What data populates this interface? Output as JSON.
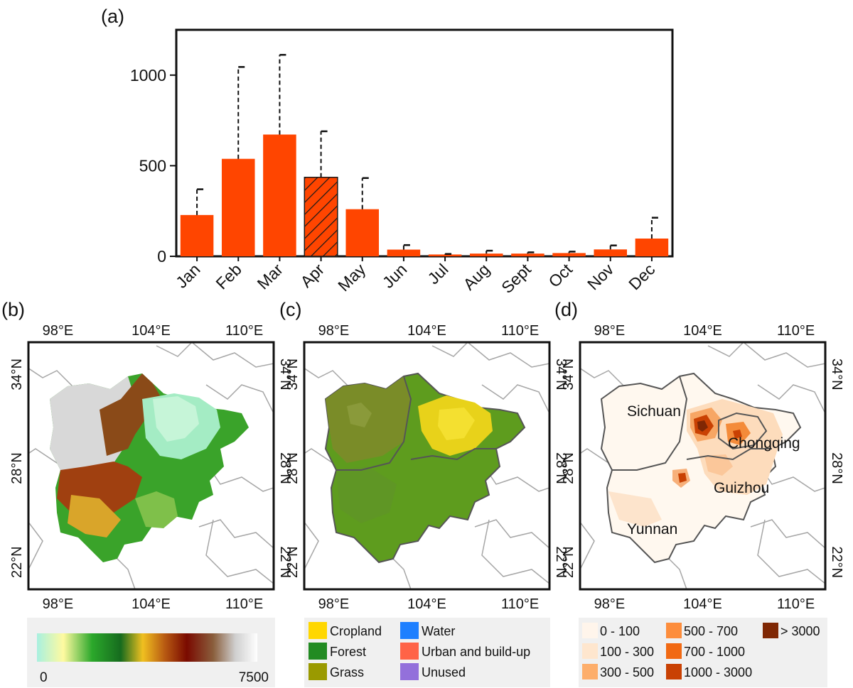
{
  "panel_labels": {
    "a": "(a)",
    "b": "(b)",
    "c": "(c)",
    "d": "(d)"
  },
  "chart_data": [
    {
      "type": "bar",
      "panel": "(a)",
      "categories": [
        "Jan",
        "Feb",
        "Mar",
        "Apr",
        "May",
        "Jun",
        "Jul",
        "Aug",
        "Sept",
        "Oct",
        "Nov",
        "Dec"
      ],
      "values": [
        228,
        538,
        672,
        436,
        260,
        37,
        10,
        15,
        15,
        18,
        38,
        98
      ],
      "error_upper": [
        370,
        1045,
        1112,
        690,
        432,
        62,
        13,
        31,
        22,
        26,
        60,
        213
      ],
      "hatched_categories": [
        "Apr"
      ],
      "bar_color": "#ff4500",
      "ylim": [
        0,
        1250
      ],
      "yticks": [
        0,
        500,
        1000
      ]
    }
  ],
  "maps": {
    "lon_ticks": [
      "98°E",
      "104°E",
      "110°E"
    ],
    "lat_ticks": [
      "34°N",
      "28°N",
      "22°N"
    ]
  },
  "elevation_legend": {
    "min_label": "0",
    "max_label": "7500"
  },
  "landuse_legend": [
    {
      "label": "Cropland",
      "color": "#ffd700"
    },
    {
      "label": "Water",
      "color": "#1e7fff"
    },
    {
      "label": "Forest",
      "color": "#228b22"
    },
    {
      "label": "Urban and build-up",
      "color": "#ff6347"
    },
    {
      "label": "Grass",
      "color": "#9a9a00"
    },
    {
      "label": "Unused",
      "color": "#9370db"
    }
  ],
  "density_legend": [
    {
      "label": "0 - 100",
      "color": "#fff5eb"
    },
    {
      "label": "500 - 700",
      "color": "#fd8d3c"
    },
    {
      "label": "> 3000",
      "color": "#7f2704"
    },
    {
      "label": "100 - 300",
      "color": "#fee6ce"
    },
    {
      "label": "700 - 1000",
      "color": "#f16913"
    },
    {
      "label": "300 - 500",
      "color": "#fdae6b"
    },
    {
      "label": "1000 - 3000",
      "color": "#c94103"
    }
  ],
  "provinces": {
    "sichuan": "Sichuan",
    "chongqing": "Chongqing",
    "guizhou": "Guizhou",
    "yunnan": "Yunnan"
  }
}
